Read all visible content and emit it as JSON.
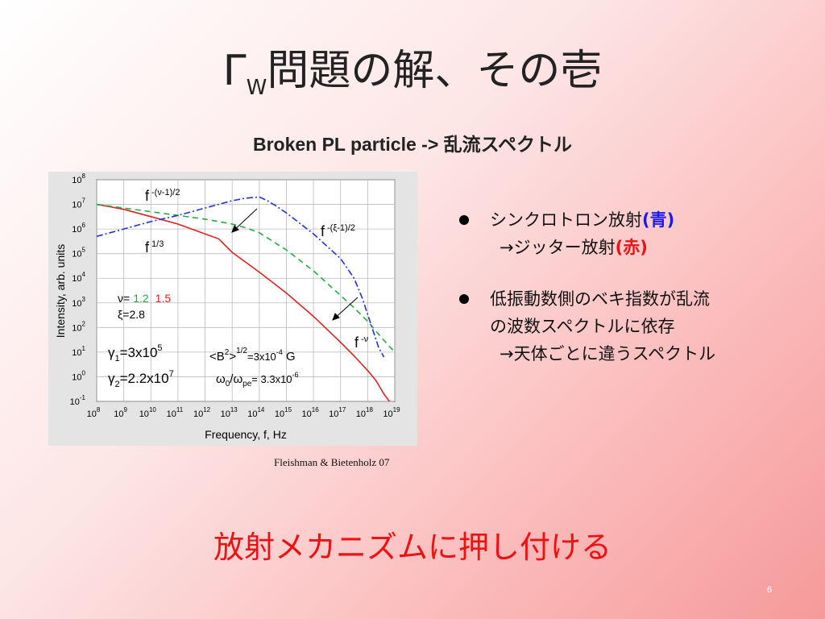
{
  "slide": {
    "title_main": "Γ",
    "title_sub": "W",
    "title_rest": "問題の解、その壱",
    "subtitle": "Broken PL particle -> 乱流スペクトル",
    "credit": "Fleishman & Bietenholz 07",
    "bullets": [
      {
        "line1_text": "シンクロトロン放射",
        "line1_colored": "(青)",
        "line1_color": "#1a1aee",
        "line2_text": "→ジッター放射",
        "line2_colored": "(赤)",
        "line2_color": "#ee1111"
      },
      {
        "line1_text": "低振動数側のベキ指数が乱流",
        "line1b_text": "の波数スペクトルに依存",
        "line2_text": "→天体ごとに違うスペクトル"
      }
    ],
    "conclusion": "放射メカニズムに押し付ける",
    "page_number": "6"
  },
  "chart_data": {
    "type": "line",
    "xlabel": "Frequency, f,   Hz",
    "ylabel": "Intensity, arb. units",
    "x_scale": "log",
    "y_scale": "log",
    "xlim_exp": [
      8,
      19
    ],
    "ylim_exp": [
      -1,
      8
    ],
    "x_ticks": [
      "10^8",
      "10^9",
      "10^10",
      "10^11",
      "10^12",
      "10^13",
      "10^14",
      "10^15",
      "10^16",
      "10^17",
      "10^18",
      "10^19"
    ],
    "y_ticks": [
      "10^-1",
      "10^0",
      "10^1",
      "10^2",
      "10^3",
      "10^4",
      "10^5",
      "10^6",
      "10^7",
      "10^8"
    ],
    "grid": true,
    "series": [
      {
        "style": "solid",
        "color": "#dd2222",
        "log_x": [
          8,
          9,
          10,
          11,
          11.5,
          12,
          12.5,
          13,
          13.5,
          14,
          15,
          16,
          17,
          17.5,
          18,
          18.3,
          18.6,
          18.8
        ],
        "log_y": [
          7.0,
          6.8,
          6.5,
          6.2,
          6.0,
          5.8,
          5.6,
          5.05,
          4.65,
          4.25,
          3.4,
          2.45,
          1.4,
          0.85,
          0.25,
          -0.15,
          -0.7,
          -1.0
        ]
      },
      {
        "style": "dashed",
        "color": "#22aa44",
        "log_x": [
          8,
          9,
          10,
          11,
          12,
          12.5,
          13,
          13.5,
          14,
          14.5,
          15,
          16,
          17,
          17.5,
          18,
          18.5,
          19
        ],
        "log_y": [
          7.0,
          6.85,
          6.7,
          6.55,
          6.4,
          6.3,
          6.2,
          6.05,
          5.85,
          5.5,
          5.15,
          4.3,
          3.3,
          2.8,
          2.25,
          1.6,
          1.0
        ]
      },
      {
        "style": "dashdot",
        "color": "#2233cc",
        "log_x": [
          8,
          9,
          10,
          11,
          12,
          13,
          13.5,
          14,
          14.3,
          14.6,
          15,
          16,
          17,
          17.5,
          17.8,
          18.1,
          18.4,
          18.6
        ],
        "log_y": [
          5.7,
          6.0,
          6.3,
          6.55,
          6.85,
          7.15,
          7.25,
          7.3,
          7.15,
          6.95,
          6.65,
          5.8,
          4.8,
          4.0,
          3.2,
          2.2,
          1.2,
          0.8
        ]
      }
    ],
    "annotations": {
      "f_low_early": "f",
      "f_low_early_exp": "-(ν-1)/2",
      "f_third": "f",
      "f_third_exp": "1/3",
      "f_mid": "f",
      "f_mid_exp": "-(ξ-1)/2",
      "f_high": "f",
      "f_high_exp": "-ν",
      "nu_label": "ν=",
      "nu_val_1": "1.2",
      "nu_val_2": "1.5",
      "xi_label": "ξ=2.8",
      "gamma1_a": "γ",
      "gamma1_b": "1",
      "gamma1_c": "=3x10",
      "gamma1_d": "5",
      "gamma2_a": "γ",
      "gamma2_b": "2",
      "gamma2_c": "=2.2x10",
      "gamma2_d": "7",
      "B_a": "<B",
      "B_b": "2",
      "B_c": ">",
      "B_d": "1/2",
      "B_e": "=3x10",
      "B_f": "-4",
      "B_g": " G",
      "omega_a": "ω",
      "omega_b": "0",
      "omega_c": "/ω",
      "omega_d": "pe",
      "omega_e": "= 3.3x10",
      "omega_f": "-6"
    },
    "colors": {
      "green": "#22aa44",
      "red": "#dd2222",
      "blue": "#2233cc"
    }
  }
}
